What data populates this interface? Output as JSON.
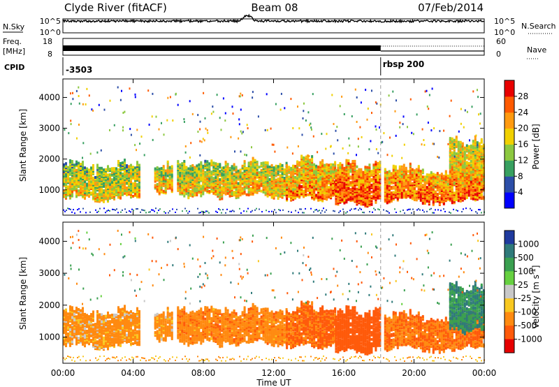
{
  "header": {
    "station": "Clyde River (fitACF)",
    "beam": "Beam 08",
    "date": "07/Feb/2014"
  },
  "noise_panel": {
    "left_label": "N.Sky",
    "right_label": "N.Search",
    "left_ticks": [
      "10^5",
      "10^0"
    ],
    "right_ticks": [
      "10^5",
      "10^0"
    ]
  },
  "freq_panel": {
    "left_label_1": "Freq.",
    "left_label_2": "[MHz]",
    "left_ticks": [
      "18",
      "8"
    ],
    "right_label": "Nave",
    "right_ticks": [
      "60",
      "0"
    ]
  },
  "cpid": {
    "label": "CPID",
    "value_1": "-3503",
    "value_2": "rbsp 200",
    "switch_time_h": 18.1
  },
  "axes": {
    "xlabel": "Time UT",
    "ylabel": "Slant Range [km]",
    "x_ticks": [
      "00:00",
      "04:00",
      "08:00",
      "12:00",
      "16:00",
      "20:00",
      "00:00"
    ],
    "x_tick_hours": [
      0,
      4,
      8,
      12,
      16,
      20,
      24
    ],
    "y_ticks": [
      "1000",
      "2000",
      "3000",
      "4000"
    ],
    "y_tick_values": [
      1000,
      2000,
      3000,
      4000
    ],
    "ylim": [
      180,
      4600
    ],
    "xlim_hours": [
      0,
      24
    ]
  },
  "power_colorbar": {
    "label": "Power [dB]",
    "ticks": [
      "28",
      "24",
      "20",
      "16",
      "12",
      "8",
      "4"
    ],
    "colors": [
      "#0000ff",
      "#2c4ea8",
      "#38a060",
      "#8cc840",
      "#f0d000",
      "#ff9a10",
      "#ff5a00",
      "#e80000"
    ],
    "range": [
      0,
      32
    ]
  },
  "velocity_colorbar": {
    "label": "Velocity [m s",
    "label_sup": "-1",
    "label_end": "]",
    "ticks": [
      "1000",
      "500",
      "100",
      "25",
      "-25",
      "-100",
      "-500",
      "-1000"
    ],
    "colors": [
      "#1f3a9e",
      "#2f7a7a",
      "#3aa050",
      "#66d040",
      "#c8c8c8",
      "#f8c820",
      "#ff8a10",
      "#ff5a0a",
      "#e60000"
    ]
  },
  "chart_data": {
    "type": "heatmap",
    "title": "Clyde River (fitACF) Beam 08 07/Feb/2014",
    "xlabel": "Time UT",
    "ylabel": "Slant Range [km]",
    "x_range_hours": [
      0,
      24
    ],
    "y_range_km": [
      180,
      4600
    ],
    "panels": [
      "Power [dB]",
      "Velocity [m s-1]"
    ],
    "echo_bursts": [
      {
        "start_h": 0.0,
        "end_h": 4.3,
        "range_low_km": 700,
        "range_high_km": 1750,
        "power_db": 19,
        "velocity": -150
      },
      {
        "start_h": 5.2,
        "end_h": 6.2,
        "range_low_km": 900,
        "range_high_km": 1700,
        "power_db": 21,
        "velocity": -150
      },
      {
        "start_h": 6.5,
        "end_h": 9.1,
        "range_low_km": 800,
        "range_high_km": 1800,
        "power_db": 20,
        "velocity": -200
      },
      {
        "start_h": 9.1,
        "end_h": 12.7,
        "range_low_km": 800,
        "range_high_km": 1800,
        "power_db": 21,
        "velocity": -200
      },
      {
        "start_h": 12.7,
        "end_h": 15.5,
        "range_low_km": 700,
        "range_high_km": 1900,
        "power_db": 24,
        "velocity": -350
      },
      {
        "start_h": 15.5,
        "end_h": 18.1,
        "range_low_km": 550,
        "range_high_km": 1750,
        "power_db": 27,
        "velocity": -500
      },
      {
        "start_h": 18.3,
        "end_h": 24.0,
        "range_low_km": 600,
        "range_high_km": 1600,
        "power_db": 26,
        "velocity": -300
      },
      {
        "start_h": 22.0,
        "end_h": 24.0,
        "range_low_km": 1200,
        "range_high_km": 2500,
        "power_db": 22,
        "velocity": 300
      }
    ]
  }
}
